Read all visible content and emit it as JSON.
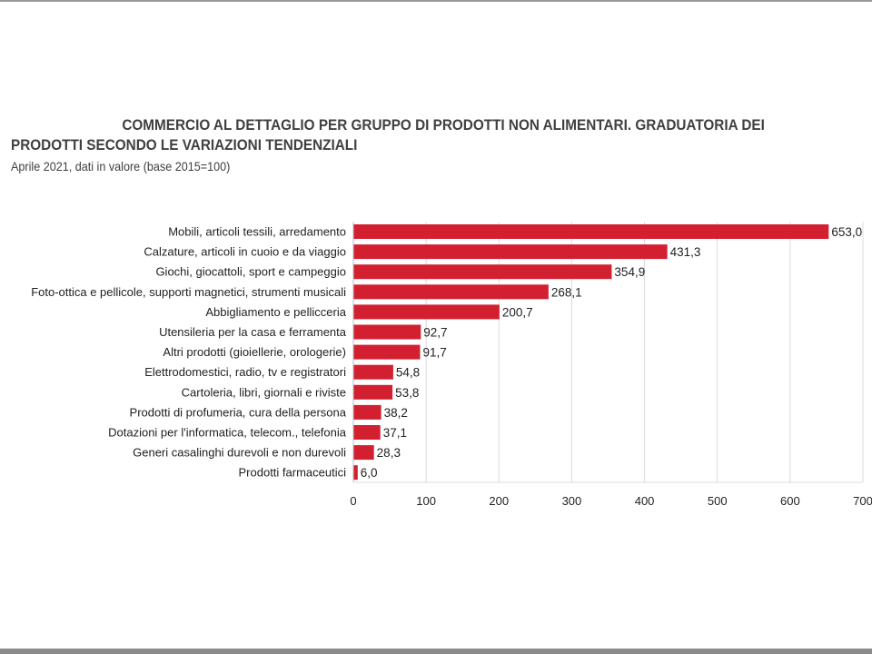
{
  "chart_data": {
    "type": "bar",
    "orientation": "horizontal",
    "title": "COMMERCIO AL DETTAGLIO PER GRUPPO DI PRODOTTI NON ALIMENTARI. GRADUATORIA DEI",
    "title_line2": "PRODOTTI SECONDO LE VARIAZIONI TENDENZIALI",
    "subtitle": "Aprile 2021, dati in valore (base 2015=100)",
    "categories": [
      "Mobili, articoli tessili, arredamento",
      "Calzature, articoli in cuoio e da viaggio",
      "Giochi, giocattoli, sport e campeggio",
      "Foto-ottica e pellicole, supporti magnetici, strumenti  musicali",
      "Abbigliamento e pellicceria",
      "Utensileria per la casa e ferramenta",
      "Altri prodotti (gioiellerie, orologerie)",
      "Elettrodomestici, radio, tv e registratori",
      "Cartoleria, libri, giornali e riviste",
      "Prodotti di profumeria, cura della persona",
      "Dotazioni per l'informatica, telecom., telefonia",
      "Generi casalinghi durevoli e non durevoli",
      "Prodotti farmaceutici"
    ],
    "values": [
      653.0,
      431.3,
      354.9,
      268.1,
      200.7,
      92.7,
      91.7,
      54.8,
      53.8,
      38.2,
      37.1,
      28.3,
      6.0
    ],
    "value_labels": [
      "653,0",
      "431,3",
      "354,9",
      "268,1",
      "200,7",
      "92,7",
      "91,7",
      "54,8",
      "53,8",
      "38,2",
      "37,1",
      "28,3",
      "6,0"
    ],
    "xlim": [
      0,
      700
    ],
    "xticks": [
      "0",
      "100",
      "200",
      "300",
      "400",
      "500",
      "600",
      "700"
    ],
    "xlabel": "",
    "ylabel": "",
    "grid": true,
    "bar_color": "#d32030"
  }
}
